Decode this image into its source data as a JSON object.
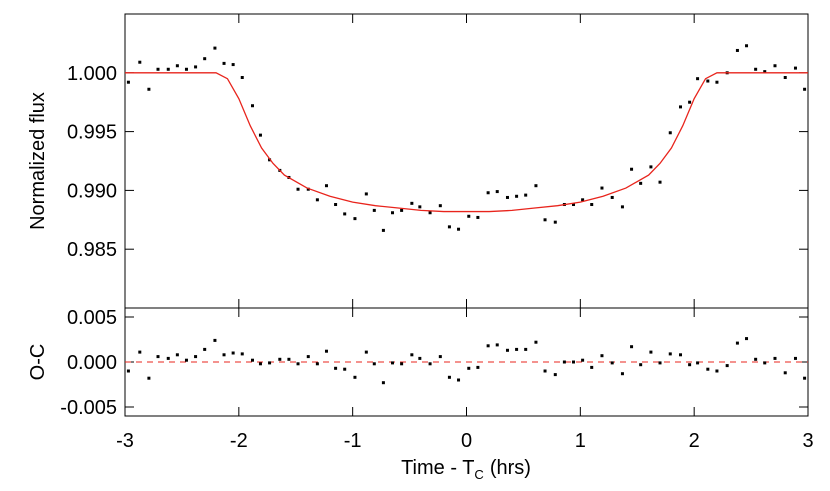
{
  "chart_data": [
    {
      "type": "scatter",
      "ylabel": "Normalized flux",
      "xlim": [
        -3,
        3
      ],
      "xticks": [
        -3,
        -2,
        -1,
        0,
        1,
        2,
        3
      ],
      "show_xtick_labels": false,
      "ylim": [
        0.98,
        1.005
      ],
      "yticks": [
        {
          "value": 1,
          "label": "1.000"
        },
        0.995,
        {
          "value": 0.99,
          "label": "0.990"
        },
        0.985
      ],
      "series": [
        {
          "type": "scatter",
          "color": "#000000",
          "x": [
            -2.97,
            -2.87,
            -2.79,
            -2.71,
            -2.62,
            -2.54,
            -2.46,
            -2.38,
            -2.3,
            -2.21,
            -2.13,
            -2.05,
            -1.97,
            -1.88,
            -1.81,
            -1.73,
            -1.64,
            -1.56,
            -1.48,
            -1.39,
            -1.31,
            -1.23,
            -1.15,
            -1.07,
            -0.98,
            -0.88,
            -0.81,
            -0.73,
            -0.65,
            -0.57,
            -0.48,
            -0.41,
            -0.32,
            -0.23,
            -0.15,
            -0.07,
            0.02,
            0.1,
            0.19,
            0.27,
            0.36,
            0.44,
            0.52,
            0.61,
            0.69,
            0.78,
            0.86,
            0.94,
            1.02,
            1.1,
            1.19,
            1.28,
            1.37,
            1.45,
            1.53,
            1.62,
            1.7,
            1.79,
            1.88,
            1.96,
            2.03,
            2.12,
            2.2,
            2.29,
            2.38,
            2.46,
            2.54,
            2.62,
            2.71,
            2.8,
            2.89,
            2.97
          ],
          "values": [
            0.9992,
            1.0009,
            0.9986,
            1.0003,
            1.0003,
            1.0006,
            1.0003,
            1.0005,
            1.0012,
            1.0021,
            1.0008,
            1.0007,
            0.9996,
            0.9972,
            0.9947,
            0.9926,
            0.9917,
            0.9911,
            0.9901,
            0.9901,
            0.9892,
            0.9904,
            0.9888,
            0.988,
            0.9876,
            0.9897,
            0.9883,
            0.9866,
            0.9881,
            0.9883,
            0.9889,
            0.9886,
            0.9881,
            0.9887,
            0.9869,
            0.9867,
            0.9878,
            0.9877,
            0.9898,
            0.9899,
            0.9894,
            0.9895,
            0.9896,
            0.9904,
            0.9875,
            0.9873,
            0.9888,
            0.9888,
            0.9892,
            0.9888,
            0.9902,
            0.9894,
            0.9886,
            0.9918,
            0.9906,
            0.992,
            0.9907,
            0.9949,
            0.9971,
            0.9975,
            0.9995,
            0.9993,
            0.9992,
            1,
            1.0019,
            1.0023,
            1.0003,
            1.0001,
            1.0006,
            0.9996,
            1.0004,
            0.9986
          ]
        },
        {
          "type": "line",
          "color": "#e8241c",
          "x": [
            -3,
            -2.2,
            -2.1,
            -2,
            -1.9,
            -1.8,
            -1.7,
            -1.6,
            -1.4,
            -1.2,
            -1,
            -0.8,
            -0.6,
            -0.4,
            -0.2,
            0,
            0.2,
            0.4,
            0.6,
            0.8,
            1,
            1.2,
            1.4,
            1.6,
            1.7,
            1.8,
            1.9,
            2,
            2.1,
            2.2,
            3
          ],
          "values": [
            1,
            1,
            0.9995,
            0.9978,
            0.9955,
            0.9936,
            0.9923,
            0.9913,
            0.9902,
            0.9895,
            0.989,
            0.9887,
            0.9885,
            0.9883,
            0.9882,
            0.9882,
            0.9882,
            0.9883,
            0.9885,
            0.9887,
            0.989,
            0.9895,
            0.9902,
            0.9913,
            0.9923,
            0.9936,
            0.9955,
            0.9978,
            0.9995,
            1,
            1
          ]
        }
      ]
    },
    {
      "type": "scatter",
      "ylabel": "O-C",
      "xlabel": [
        "Time - T",
        "C",
        "(hrs)"
      ],
      "xlim": [
        -3,
        3
      ],
      "xticks": [
        -3,
        -2,
        -1,
        0,
        1,
        2,
        3
      ],
      "show_xtick_labels": true,
      "ylim": [
        -0.006,
        0.006
      ],
      "yticks": [
        0.005,
        {
          "value": 0,
          "label": "0.000"
        },
        -0.005
      ],
      "zero_line": {
        "y": 0,
        "color": "#e8241c",
        "style": "dashed"
      },
      "series": [
        {
          "type": "scatter",
          "color": "#000000",
          "x": [
            -2.97,
            -2.87,
            -2.79,
            -2.71,
            -2.62,
            -2.54,
            -2.46,
            -2.38,
            -2.3,
            -2.21,
            -2.13,
            -2.05,
            -1.97,
            -1.88,
            -1.81,
            -1.73,
            -1.64,
            -1.56,
            -1.48,
            -1.39,
            -1.31,
            -1.23,
            -1.15,
            -1.07,
            -0.98,
            -0.88,
            -0.81,
            -0.73,
            -0.65,
            -0.57,
            -0.48,
            -0.41,
            -0.32,
            -0.23,
            -0.15,
            -0.07,
            0.02,
            0.1,
            0.19,
            0.27,
            0.36,
            0.44,
            0.52,
            0.61,
            0.69,
            0.78,
            0.86,
            0.94,
            1.02,
            1.1,
            1.19,
            1.28,
            1.37,
            1.45,
            1.53,
            1.62,
            1.7,
            1.79,
            1.88,
            1.96,
            2.03,
            2.12,
            2.2,
            2.29,
            2.38,
            2.46,
            2.54,
            2.62,
            2.71,
            2.8,
            2.89,
            2.97
          ],
          "values": [
            -0.001,
            0.0011,
            -0.0018,
            0.0006,
            0.0004,
            0.0008,
            0.0002,
            0.0006,
            0.0014,
            0.0024,
            0.0008,
            0.001,
            0.0009,
            0.0002,
            -0.0002,
            -0.0001,
            0.0003,
            0.0003,
            -0.0002,
            0.0006,
            -0.0002,
            0.0012,
            -0.0007,
            -0.0008,
            -0.0017,
            0.0011,
            -0.0002,
            -0.0023,
            -0.0001,
            -0.0002,
            0.0008,
            0.0004,
            -0.0002,
            0.0006,
            -0.0017,
            -0.002,
            -0.0007,
            -0.0006,
            0.0018,
            0.0019,
            0.0013,
            0.0014,
            0.0014,
            0.0022,
            -0.001,
            -0.0014,
            0,
            0,
            0.0002,
            -0.0006,
            0.0007,
            -0.0001,
            -0.0013,
            0.0017,
            -0.0003,
            0.0011,
            -0.0001,
            0.0009,
            0.0008,
            -0.0003,
            -0.0001,
            -0.0008,
            -0.001,
            -0.0004,
            0.0021,
            0.0026,
            0.0003,
            -0.0001,
            0.0004,
            -0.0012,
            0.0004,
            -0.0018
          ]
        }
      ]
    }
  ]
}
